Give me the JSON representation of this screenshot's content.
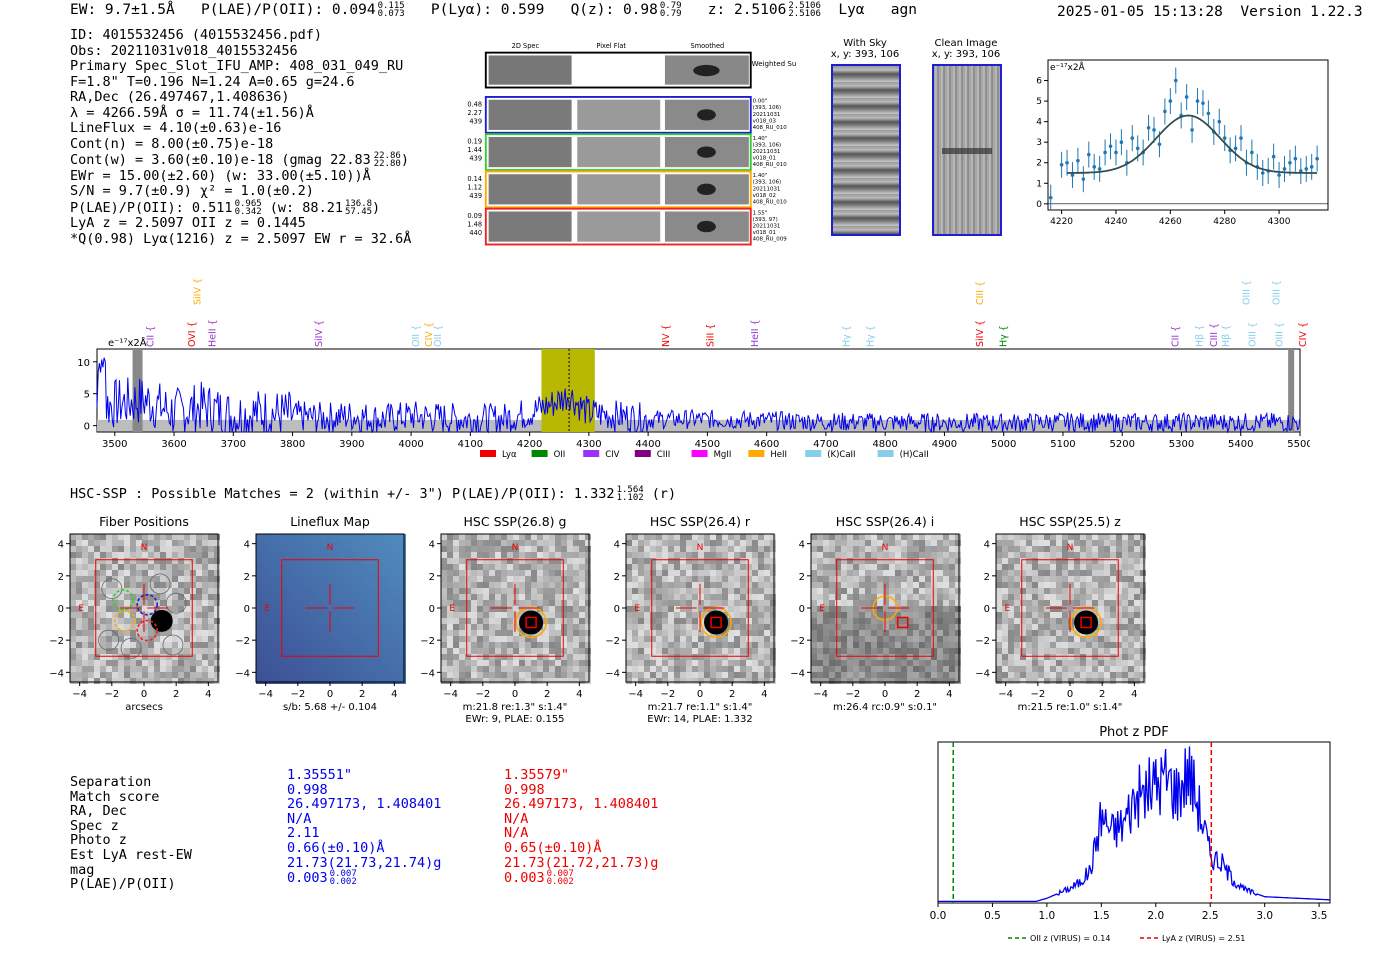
{
  "header": {
    "ew": "EW: 9.7±1.5Å",
    "plae": "P(LAE)/P(OII): 0.094",
    "plae_hi": "0.115",
    "plae_lo": "0.073",
    "plya": "P(Lyα): 0.599",
    "qz": "Q(z): 0.98",
    "qz_hi": "0.79",
    "qz_lo": "0.79",
    "z": "z: 2.5106",
    "z_hi": "2.5106",
    "z_lo": "2.5106",
    "line": "Lyα",
    "cls": "agn",
    "timestamp": "2025-01-05 15:13:28",
    "version": "Version 1.22.3"
  },
  "info_lines": [
    "ID: 4015532456 (4015532456.pdf)",
    "Obs: 20211031v018_4015532456",
    "Primary Spec_Slot_IFU_AMP: 408_031_049_RU",
    "F=1.8\"  T=0.196  N=1.24  A=0.65  g=24.6",
    "RA,Dec (26.497467,1.408636)",
    "λ = 4266.59Å  σ = 11.74(±1.56)Å",
    "LineFlux = 4.10(±0.63)e-16",
    "Cont(n) = 8.00(±0.75)e-18",
    "Cont(w) = 3.60(±0.10)e-18 (gmag 22.83",
    "EWr = 15.00(±2.60) (w: 33.00(±5.10))Å",
    "S/N = 9.7(±0.9)  χ² = 1.0(±0.2)",
    "P(LAE)/P(OII): 0.511",
    "LyA z = 2.5097  OII z = 0.1445",
    "*Q(0.98) Lyα(1216) z = 2.5097  EW r = 32.6Å"
  ],
  "info_sups": {
    "gmag_hi": "22.86",
    "gmag_lo": "22.80",
    "plae_hi": "0.965",
    "plae_lo": "0.342",
    "w_text": "(w: 88.21",
    "w_hi": "136.8",
    "w_lo": "57.45",
    "w_close": ")"
  },
  "spec2d": {
    "col_titles": [
      "2D Spec",
      "Pixel Flat",
      "Smoothed"
    ],
    "weighted_sum": "Weighted Sum",
    "rows": [
      {
        "left": [
          "0.48",
          "2.27",
          "439"
        ],
        "right": [
          "0.00\"",
          "(393, 106)",
          "20211031",
          "v018_03",
          "408_RU_010"
        ],
        "color": "#1f1fd0"
      },
      {
        "left": [
          "0.19",
          "1.44",
          "439"
        ],
        "right": [
          "1.40\"",
          "(393, 106)",
          "20211031",
          "v018_01",
          "408_RU_010"
        ],
        "color": "#33cc33"
      },
      {
        "left": [
          "0.14",
          "1.12",
          "439"
        ],
        "right": [
          "1.40\"",
          "(393, 106)",
          "20211031",
          "v018_02",
          "408_RU_010"
        ],
        "color": "#ffaa00"
      },
      {
        "left": [
          "0.09",
          "1.48",
          "440"
        ],
        "right": [
          "1.55\"",
          "(393, 97)",
          "20211031",
          "v018_01",
          "408_RU_009"
        ],
        "color": "#ee2222"
      }
    ]
  },
  "sky": {
    "with_sky": "With Sky",
    "with_sky_xy": "x, y: 393, 106",
    "clean": "Clean Image",
    "clean_xy": "x, y: 393, 106"
  },
  "line_fit": {
    "unit": "e⁻¹⁷x2Å",
    "xticks": [
      "4220",
      "4240",
      "4260",
      "4280",
      "4300"
    ],
    "yticks": [
      "0",
      "1",
      "2",
      "3",
      "4",
      "5",
      "6"
    ]
  },
  "spectrum": {
    "unit": "e⁻¹⁷x2Å",
    "xticks": [
      "3500",
      "3600",
      "3700",
      "3800",
      "3900",
      "4000",
      "4100",
      "4200",
      "4300",
      "4400",
      "4500",
      "4600",
      "4700",
      "4800",
      "4900",
      "5000",
      "5100",
      "5200",
      "5300",
      "5400",
      "5500"
    ],
    "yticks": [
      "0",
      "5",
      "10"
    ],
    "upper_lines": [
      {
        "label": "SiIV",
        "x": 3640,
        "color": "#ffaa00"
      },
      {
        "label": "CIII",
        "x": 4960,
        "color": "#ffaa00"
      },
      {
        "label": "OIII",
        "x": 5410,
        "color": "#87ceeb"
      },
      {
        "label": "OIII",
        "x": 5460,
        "color": "#87ceeb"
      }
    ],
    "lower_lines": [
      {
        "label": "CII",
        "x": 3560,
        "color": "#9932cc"
      },
      {
        "label": "OVI",
        "x": 3630,
        "color": "#ee0000"
      },
      {
        "label": "HeII",
        "x": 3665,
        "color": "#9932cc"
      },
      {
        "label": "SiIV",
        "x": 3845,
        "color": "#9932cc"
      },
      {
        "label": "OII",
        "x": 4008,
        "color": "#87ceeb"
      },
      {
        "label": "CIV",
        "x": 4030,
        "color": "#ffaa00"
      },
      {
        "label": "OII",
        "x": 4045,
        "color": "#87ceeb"
      },
      {
        "label": "NV",
        "x": 4430,
        "color": "#ee0000"
      },
      {
        "label": "SiII",
        "x": 4505,
        "color": "#ee0000"
      },
      {
        "label": "HeII",
        "x": 4580,
        "color": "#9932cc"
      },
      {
        "label": "Hγ",
        "x": 4735,
        "color": "#87ceeb"
      },
      {
        "label": "Hγ",
        "x": 4775,
        "color": "#87ceeb"
      },
      {
        "label": "SiIV",
        "x": 4960,
        "color": "#ee0000"
      },
      {
        "label": "Hγ",
        "x": 5000,
        "color": "#008800"
      },
      {
        "label": "CII",
        "x": 5290,
        "color": "#9932cc"
      },
      {
        "label": "Hβ",
        "x": 5330,
        "color": "#87ceeb"
      },
      {
        "label": "CIII",
        "x": 5355,
        "color": "#9932cc"
      },
      {
        "label": "Hβ",
        "x": 5375,
        "color": "#87ceeb"
      },
      {
        "label": "OIII",
        "x": 5420,
        "color": "#87ceeb"
      },
      {
        "label": "OIII",
        "x": 5465,
        "color": "#87ceeb"
      },
      {
        "label": "CIV",
        "x": 5505,
        "color": "#ee0000"
      }
    ],
    "legend": [
      {
        "label": "Lyα",
        "color": "#ee0000"
      },
      {
        "label": "OII",
        "color": "#008800"
      },
      {
        "label": "CIV",
        "color": "#9932ff"
      },
      {
        "label": "CIII",
        "color": "#800080"
      },
      {
        "label": "MgII",
        "color": "#ff00ff"
      },
      {
        "label": "HeII",
        "color": "#ffaa00"
      },
      {
        "label": "(K)CaII",
        "color": "#87ceeb"
      },
      {
        "label": "(H)CaII",
        "color": "#87ceeb"
      }
    ]
  },
  "hsc": {
    "title": "HSC-SSP : Possible Matches = 2 (within +/- 3\")  P(LAE)/P(OII): 1.332",
    "title_hi": "1.564",
    "title_lo": "1.102",
    "title_band": "(r)",
    "panels": [
      {
        "title": "Fiber Positions",
        "xlabel": "arcsecs",
        "sub2": ""
      },
      {
        "title": "Lineflux Map",
        "xlabel": "s/b: 5.68 +/- 0.104",
        "sub2": ""
      },
      {
        "title": "HSC SSP(26.8) g",
        "xlabel": "m:21.8  re:1.3\"  s:1.4\"",
        "sub2": "EWr: 9, PLAE: 0.155"
      },
      {
        "title": "HSC SSP(26.4) r",
        "xlabel": "m:21.7  re:1.1\"  s:1.4\"",
        "sub2": "EWr: 14, PLAE: 1.332"
      },
      {
        "title": "HSC SSP(26.4) i",
        "xlabel": "m:26.4 rc:0.9\"  s:0.1\"",
        "sub2": ""
      },
      {
        "title": "HSC SSP(25.5) z",
        "xlabel": "m:21.5  re:1.0\"  s:1.4\"",
        "sub2": ""
      }
    ],
    "axis_ticks": [
      "−4",
      "−2",
      "0",
      "2",
      "4"
    ],
    "compass_n": "N",
    "compass_e": "E"
  },
  "match_table": {
    "labels": [
      "Separation",
      "Match score",
      "RA, Dec",
      "Spec z",
      "Photo z",
      "Est LyA rest-EW",
      "mag",
      "P(LAE)/P(OII)"
    ],
    "col1": [
      "1.35551\"",
      "0.998",
      "26.497173, 1.408401",
      "N/A",
      "2.11",
      "0.66(±0.10)Å",
      "21.73(21.73,21.74)g",
      "0.003"
    ],
    "col1_sup": {
      "hi": "0.007",
      "lo": "0.002"
    },
    "col2": [
      "1.35579\"",
      "0.998",
      "26.497173, 1.408401",
      "N/A",
      "N/A",
      "0.65(±0.10)Å",
      "21.73(21.72,21.73)g",
      "0.003"
    ],
    "col2_sup": {
      "hi": "0.007",
      "lo": "0.002"
    },
    "col1_color": "#0000ee",
    "col2_color": "#ee0000"
  },
  "photz": {
    "title": "Phot z PDF",
    "xticks": [
      "0.0",
      "0.5",
      "1.0",
      "1.5",
      "2.0",
      "2.5",
      "3.0",
      "3.5"
    ],
    "oii_z": 0.14,
    "lya_z": 2.51,
    "legend_oii": "OII z (VIRUS) = 0.14",
    "legend_lya": "LyA z (VIRUS) = 2.51"
  },
  "chart_data": [
    {
      "type": "line",
      "title": "",
      "ylabel": "e-17 x2Å",
      "xlim": [
        3470,
        5500
      ],
      "ylim": [
        -1,
        12
      ],
      "highlight_range": [
        4220,
        4310
      ],
      "center_line": 4266.6,
      "series": [
        {
          "name": "spectrum",
          "x": [
            3470,
            3550,
            3600,
            3650,
            3700,
            3750,
            3800,
            3850,
            3900,
            3950,
            4000,
            4050,
            4100,
            4150,
            4200,
            4240,
            4260,
            4267,
            4280,
            4300,
            4350,
            4400,
            4500,
            4600,
            4700,
            4800,
            4900,
            5000,
            5100,
            5200,
            5300,
            5400,
            5500
          ],
          "y": [
            3,
            4,
            2,
            3,
            1.5,
            2,
            1.5,
            1.2,
            1.5,
            1,
            1.5,
            1.2,
            1,
            1,
            2,
            3.5,
            4.5,
            5,
            3.5,
            2,
            1.5,
            1,
            1,
            0.8,
            0.6,
            0.5,
            0.5,
            0.4,
            0.6,
            0.5,
            0.5,
            0.5,
            0.5
          ]
        }
      ]
    },
    {
      "type": "scatter",
      "title": "",
      "ylabel": "e-17 x2Å",
      "xlim": [
        4215,
        4318
      ],
      "ylim": [
        -0.3,
        7
      ],
      "series": [
        {
          "name": "data",
          "x": [
            4216,
            4220,
            4222,
            4224,
            4226,
            4228,
            4230,
            4232,
            4234,
            4236,
            4238,
            4240,
            4242,
            4244,
            4246,
            4248,
            4250,
            4252,
            4254,
            4256,
            4258,
            4260,
            4262,
            4264,
            4266,
            4268,
            4270,
            4272,
            4274,
            4276,
            4278,
            4280,
            4282,
            4284,
            4286,
            4288,
            4290,
            4292,
            4294,
            4296,
            4298,
            4300,
            4302,
            4304,
            4306,
            4308,
            4310,
            4312,
            4314
          ],
          "y": [
            0.3,
            1.9,
            2.0,
            1.4,
            2.1,
            1.2,
            2.4,
            1.8,
            1.7,
            2.5,
            2.8,
            2.5,
            3.0,
            2.0,
            3.2,
            2.7,
            2.5,
            3.7,
            3.6,
            2.9,
            4.5,
            5.0,
            6.0,
            4.3,
            5.2,
            3.6,
            5.0,
            4.9,
            4.4,
            3.5,
            4.0,
            3.2,
            2.6,
            2.7,
            3.2,
            2.0,
            2.5,
            1.8,
            1.5,
            1.6,
            2.3,
            1.4,
            1.7,
            2.0,
            2.2,
            1.6,
            1.7,
            1.8,
            2.2
          ]
        },
        {
          "name": "fit",
          "center": 4266.6,
          "sigma": 11.74,
          "amp": 2.8,
          "baseline": 1.5
        }
      ]
    },
    {
      "type": "line",
      "title": "Phot z PDF",
      "xlim": [
        0,
        3.6
      ],
      "ylim": [
        0,
        1
      ],
      "series": [
        {
          "name": "pdf",
          "x": [
            0,
            0.9,
            1.0,
            1.1,
            1.2,
            1.3,
            1.4,
            1.5,
            1.6,
            1.7,
            1.8,
            1.9,
            2.0,
            2.1,
            2.2,
            2.3,
            2.4,
            2.5,
            2.6,
            2.7,
            2.8,
            3.0,
            3.6
          ],
          "y": [
            0,
            0,
            0.02,
            0.05,
            0.08,
            0.12,
            0.2,
            0.55,
            0.45,
            0.5,
            0.65,
            0.7,
            0.75,
            0.8,
            0.7,
            0.85,
            0.6,
            0.3,
            0.25,
            0.15,
            0.08,
            0.03,
            0.01
          ]
        }
      ]
    }
  ]
}
